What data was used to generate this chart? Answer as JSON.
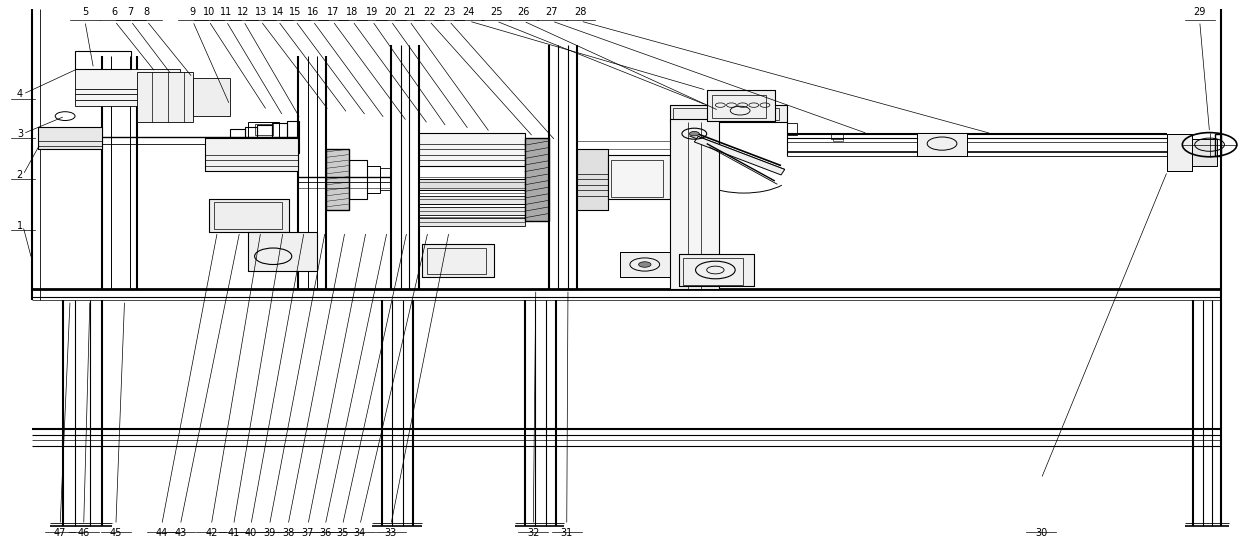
{
  "bg_color": "#ffffff",
  "line_color": "#000000",
  "fig_width": 12.4,
  "fig_height": 5.51,
  "dpi": 100,
  "top_labels": [
    [
      "5",
      0.068
    ],
    [
      "6",
      0.092
    ],
    [
      "7",
      0.105
    ],
    [
      "8",
      0.118
    ],
    [
      "9",
      0.155
    ],
    [
      "10",
      0.168
    ],
    [
      "11",
      0.182
    ],
    [
      "12",
      0.196
    ],
    [
      "13",
      0.21
    ],
    [
      "14",
      0.224
    ],
    [
      "15",
      0.238
    ],
    [
      "16",
      0.252
    ],
    [
      "17",
      0.268
    ],
    [
      "18",
      0.284
    ],
    [
      "19",
      0.3
    ],
    [
      "20",
      0.315
    ],
    [
      "21",
      0.33
    ],
    [
      "22",
      0.346
    ],
    [
      "23",
      0.362
    ],
    [
      "24",
      0.378
    ],
    [
      "25",
      0.4
    ],
    [
      "26",
      0.422
    ],
    [
      "27",
      0.445
    ],
    [
      "28",
      0.468
    ],
    [
      "29",
      0.968
    ]
  ],
  "left_labels": [
    [
      "4",
      0.83
    ],
    [
      "3",
      0.758
    ],
    [
      "2",
      0.683
    ],
    [
      "1",
      0.59
    ]
  ],
  "bottom_labels": [
    [
      "47",
      0.048
    ],
    [
      "46",
      0.067
    ],
    [
      "45",
      0.093
    ],
    [
      "44",
      0.13
    ],
    [
      "43",
      0.145
    ],
    [
      "42",
      0.17
    ],
    [
      "41",
      0.188
    ],
    [
      "40",
      0.202
    ],
    [
      "39",
      0.217
    ],
    [
      "38",
      0.232
    ],
    [
      "37",
      0.248
    ],
    [
      "36",
      0.262
    ],
    [
      "35",
      0.276
    ],
    [
      "34",
      0.29
    ],
    [
      "33",
      0.315
    ],
    [
      "32",
      0.43
    ],
    [
      "31",
      0.457
    ],
    [
      "30",
      0.84
    ]
  ]
}
